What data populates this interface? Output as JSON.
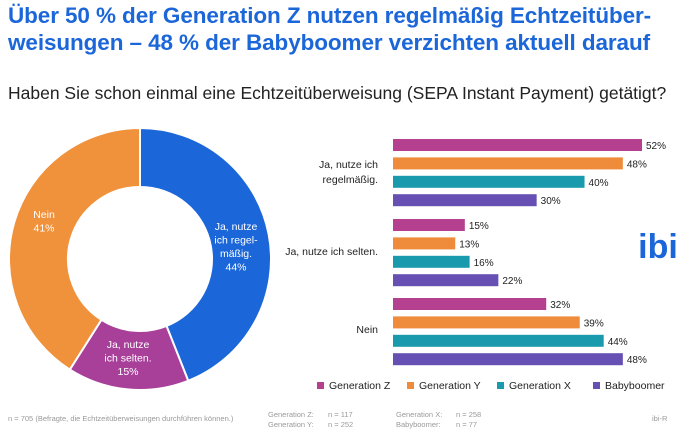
{
  "title_line1": "Über 50 % der Generation Z nutzen regelmäßig Echtzeitüber-",
  "title_line2": "weisungen – 48 % der Babyboomer verzichten aktuell darauf",
  "question": "Haben Sie schon einmal eine Echtzeitüberweisung (SEPA Instant Payment) getätigt?",
  "brand": {
    "logo_text": "ibi",
    "color": "#1b66d9"
  },
  "footer": {
    "note": "n = 705 (Befragte, die Echtzeitüberweisungen durchführen können.)",
    "gen_z": "Generation Z:",
    "gen_z_n": "n = 117",
    "gen_y": "Generation Y:",
    "gen_y_n": "n = 252",
    "gen_x": "Generation X:",
    "gen_x_n": "n = 258",
    "boomer": "Babyboomer:",
    "boomer_n": "n = 77",
    "source": "ibi-R"
  },
  "chart_data": [
    {
      "type": "pie",
      "donut": true,
      "slices": [
        {
          "label_lines": [
            "Ja, nutze",
            "ich regel-",
            "mäßig."
          ],
          "value": 44,
          "value_label": "44%",
          "color": "#1b66d9"
        },
        {
          "label_lines": [
            "Ja, nutze",
            "ich selten."
          ],
          "value": 15,
          "value_label": "15%",
          "color": "#a8409a"
        },
        {
          "label_lines": [
            "Nein"
          ],
          "value": 41,
          "value_label": "41%",
          "color": "#f0913c"
        }
      ]
    },
    {
      "type": "bar",
      "orientation": "horizontal",
      "categories": [
        {
          "label_lines": [
            "Ja, nutze ich",
            "regelmäßig."
          ]
        },
        {
          "label_lines": [
            "Ja, nutze ich selten."
          ]
        },
        {
          "label_lines": [
            "Nein"
          ]
        }
      ],
      "series": [
        {
          "name": "Generation Z",
          "color": "#b5408f",
          "values": [
            52,
            15,
            32
          ]
        },
        {
          "name": "Generation Y",
          "color": "#ef8c3b",
          "values": [
            48,
            13,
            39
          ]
        },
        {
          "name": "Generation X",
          "color": "#1a9bad",
          "values": [
            40,
            16,
            44
          ]
        },
        {
          "name": "Babyboomer",
          "color": "#6750b3",
          "values": [
            30,
            22,
            48
          ]
        }
      ],
      "value_suffix": "%",
      "xlim": [
        0,
        52
      ],
      "legend_position": "bottom"
    }
  ]
}
